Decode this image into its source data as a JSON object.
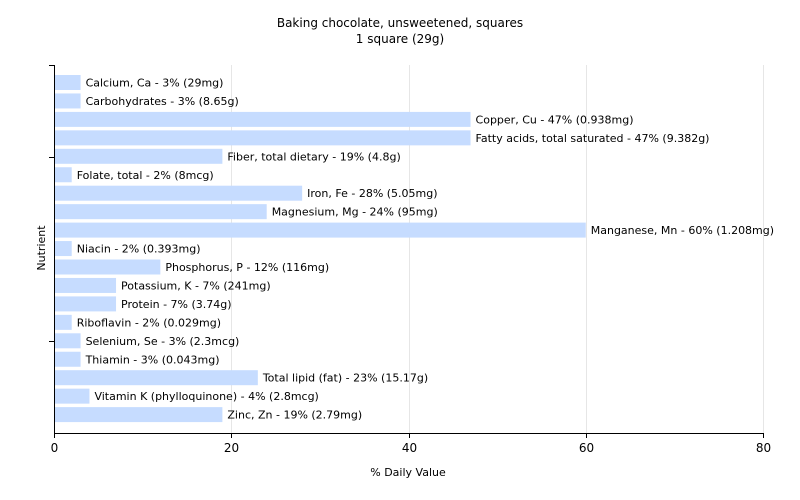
{
  "chart_data": {
    "type": "bar",
    "orientation": "horizontal",
    "title": "Baking chocolate, unsweetened, squares",
    "subtitle": "1 square (29g)",
    "xlabel": "% Daily Value",
    "ylabel": "Nutrient",
    "xlim": [
      0,
      80
    ],
    "xticks": [
      0,
      20,
      40,
      60,
      80
    ],
    "grid": true,
    "bar_color": "#c6dcff",
    "categories": [
      "Calcium, Ca",
      "Carbohydrates",
      "Copper, Cu",
      "Fatty acids, total saturated",
      "Fiber, total dietary",
      "Folate, total",
      "Iron, Fe",
      "Magnesium, Mg",
      "Manganese, Mn",
      "Niacin",
      "Phosphorus, P",
      "Potassium, K",
      "Protein",
      "Riboflavin",
      "Selenium, Se",
      "Thiamin",
      "Total lipid (fat)",
      "Vitamin K (phylloquinone)",
      "Zinc, Zn"
    ],
    "values": [
      3,
      3,
      47,
      47,
      19,
      2,
      28,
      24,
      60,
      2,
      12,
      7,
      7,
      2,
      3,
      3,
      23,
      4,
      19
    ],
    "data_labels": [
      "Calcium, Ca - 3% (29mg)",
      "Carbohydrates - 3% (8.65g)",
      "Copper, Cu - 47% (0.938mg)",
      "Fatty acids, total saturated - 47% (9.382g)",
      "Fiber, total dietary - 19% (4.8g)",
      "Folate, total - 2% (8mcg)",
      "Iron, Fe - 28% (5.05mg)",
      "Magnesium, Mg - 24% (95mg)",
      "Manganese, Mn - 60% (1.208mg)",
      "Niacin - 2% (0.393mg)",
      "Phosphorus, P - 12% (116mg)",
      "Potassium, K - 7% (241mg)",
      "Protein - 7% (3.74g)",
      "Riboflavin - 2% (0.029mg)",
      "Selenium, Se - 3% (2.3mcg)",
      "Thiamin - 3% (0.043mg)",
      "Total lipid (fat) - 23% (15.17g)",
      "Vitamin K (phylloquinone) - 4% (2.8mcg)",
      "Zinc, Zn - 19% (2.79mg)"
    ]
  }
}
